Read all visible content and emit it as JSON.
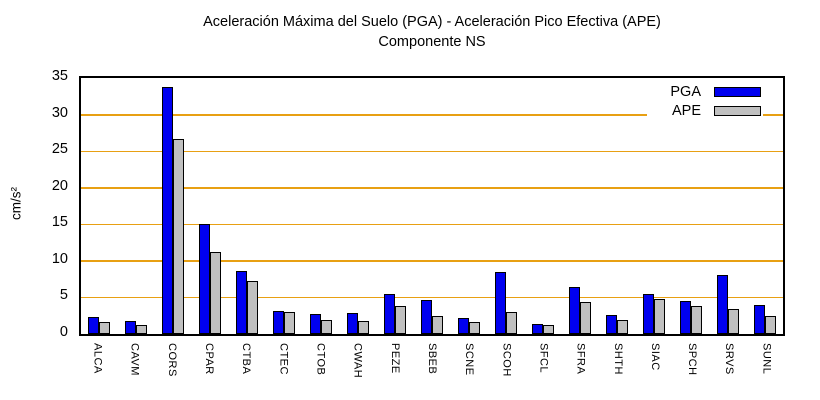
{
  "title": {
    "line1": "Aceleración Máxima del Suelo (PGA) -  Aceleración Pico Efectiva (APE)",
    "line2": "Componente NS"
  },
  "chart_data": {
    "type": "bar",
    "categories": [
      "ALCA",
      "CAVM",
      "CORS",
      "CPAR",
      "CTBA",
      "CTEC",
      "CTOB",
      "CWAH",
      "PEZE",
      "SBEB",
      "SCNE",
      "SCOH",
      "SFCL",
      "SFRA",
      "SHTH",
      "SIAC",
      "SPCH",
      "SRVS",
      "SUNL"
    ],
    "series": [
      {
        "name": "PGA",
        "color": "#0000f0",
        "values": [
          2.3,
          1.8,
          33.8,
          15.1,
          8.6,
          3.1,
          2.8,
          2.9,
          5.5,
          4.7,
          2.2,
          8.5,
          1.4,
          6.4,
          2.6,
          5.5,
          4.5,
          8.1,
          4.0
        ]
      },
      {
        "name": "APE",
        "color": "#c0c0c0",
        "values": [
          1.6,
          1.2,
          26.7,
          11.2,
          7.2,
          3.0,
          1.9,
          1.8,
          3.8,
          2.5,
          1.7,
          3.0,
          1.2,
          4.4,
          1.9,
          4.8,
          3.8,
          3.4,
          2.4
        ]
      }
    ],
    "xlabel": "",
    "ylabel": "cm/s²",
    "ylim": [
      0,
      35
    ],
    "yticks": [
      0,
      5,
      10,
      15,
      20,
      25,
      30,
      35
    ],
    "grid": true,
    "grid_color": "#e8a013",
    "legend_position": "top-right"
  }
}
